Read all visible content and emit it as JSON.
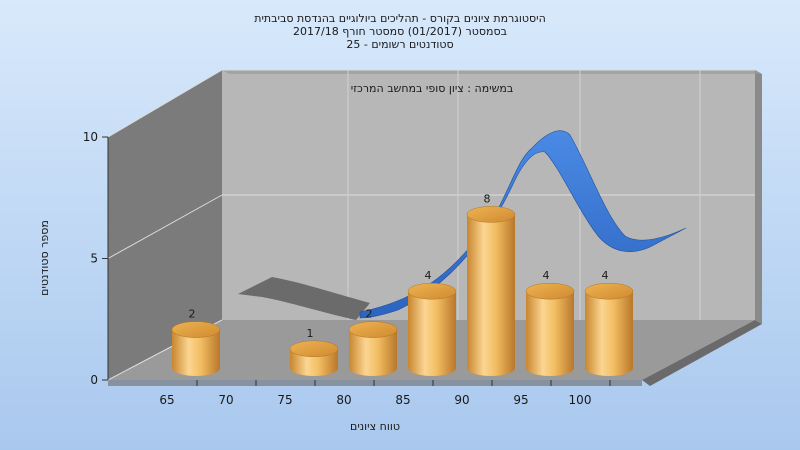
{
  "chart_data": {
    "type": "bar",
    "title_lines": [
      "היסטוגרמת ציונים בקורס - תהליכים ביולוגיים בהנדסת סביבתית",
      "בסמסטר  (01/2017)  סמסטר חורף  2017/18",
      "סטודנטים רשומים - 25"
    ],
    "subtitle": "במשימה : ציון סופי במחשב המרכזי",
    "xlabel": "טווח ציונים",
    "ylabel": "מספר סטודנטים",
    "categories": [
      "65",
      "70",
      "75",
      "80",
      "85",
      "90",
      "95",
      "100"
    ],
    "values": [
      2,
      0,
      1,
      2,
      4,
      8,
      4,
      4
    ],
    "data_labels": [
      "2",
      "",
      "1",
      "2",
      "4",
      "8",
      "4",
      "4"
    ],
    "yticks": [
      "0",
      "5",
      "10"
    ],
    "ylim": [
      0,
      10
    ],
    "grid": true,
    "curve": {
      "type": "normal-distribution",
      "colors": {
        "visible": "#3b78d4",
        "hidden": "#6e6e6e"
      }
    },
    "colors": {
      "background_top": "#d8e9fb",
      "background_bottom": "#a9c8ee",
      "bar_light": "#fbd592",
      "bar_dark": "#c8862e",
      "bar_top": "#e2a548"
    }
  }
}
